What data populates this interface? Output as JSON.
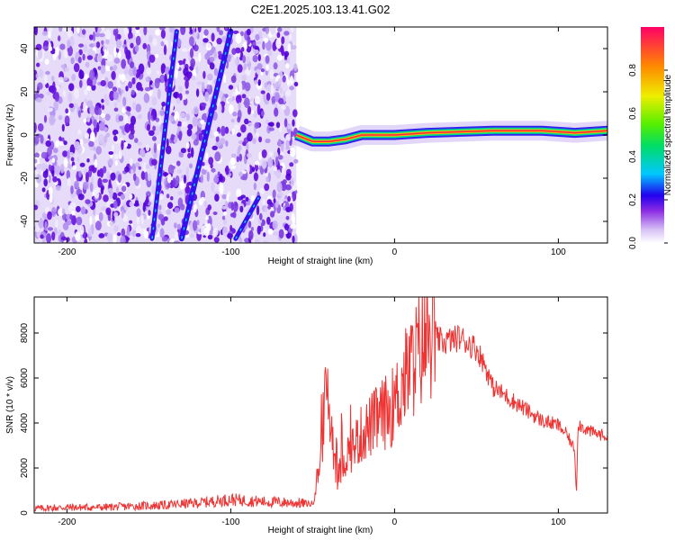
{
  "title": "C2E1.2025.103.13.41.G02",
  "chart_data": [
    {
      "type": "heatmap",
      "xlabel": "Height of straight line (km)",
      "ylabel": "Frequency (Hz)",
      "xlim": [
        -220,
        130
      ],
      "ylim": [
        -50,
        50
      ],
      "xticks": [
        -200,
        -100,
        0,
        100
      ],
      "yticks": [
        -40,
        -20,
        0,
        20,
        40
      ],
      "colorbar": {
        "label": "Normalized spectral amplitude",
        "range": [
          0,
          1
        ],
        "ticks": [
          "0.0",
          "0.2",
          "0.4",
          "0.6",
          "0.8"
        ]
      },
      "features": [
        {
          "name": "noise-region",
          "x_range": [
            -220,
            -60
          ],
          "y_range": [
            -50,
            50
          ]
        },
        {
          "name": "streak-1",
          "from": [
            -130,
            -48
          ],
          "to": [
            -100,
            48
          ]
        },
        {
          "name": "streak-2",
          "from": [
            -148,
            -48
          ],
          "to": [
            -133,
            48
          ]
        },
        {
          "name": "streak-3",
          "from": [
            -97,
            -48
          ],
          "to": [
            -83,
            -29
          ]
        },
        {
          "name": "carrier-line",
          "points": [
            [
              -60,
              0
            ],
            [
              -50,
              -3
            ],
            [
              -40,
              -3
            ],
            [
              -30,
              -2
            ],
            [
              -20,
              0
            ],
            [
              0,
              0
            ],
            [
              20,
              1
            ],
            [
              60,
              2
            ],
            [
              90,
              2
            ],
            [
              110,
              1
            ],
            [
              130,
              2
            ]
          ]
        }
      ]
    },
    {
      "type": "line",
      "xlabel": "Height of straight line (km)",
      "ylabel": "SNR (10 * v/v)",
      "xlim": [
        -220,
        130
      ],
      "ylim": [
        0,
        9600
      ],
      "xticks": [
        -200,
        -100,
        0,
        100
      ],
      "yticks": [
        0,
        2000,
        4000,
        6000,
        8000
      ],
      "series": [
        {
          "color": "#ee3333",
          "x": [
            -220,
            -200,
            -180,
            -160,
            -140,
            -120,
            -100,
            -80,
            -60,
            -50,
            -45,
            -43,
            -41,
            -38,
            -35,
            -30,
            -20,
            -10,
            0,
            5,
            10,
            15,
            20,
            30,
            40,
            50,
            55,
            60,
            70,
            80,
            90,
            100,
            105,
            110,
            111,
            112,
            115,
            120,
            130
          ],
          "y": [
            200,
            250,
            250,
            300,
            350,
            450,
            600,
            500,
            450,
            400,
            2500,
            4500,
            5500,
            3500,
            1500,
            2500,
            3500,
            4200,
            4800,
            5800,
            6500,
            7200,
            7800,
            7600,
            7800,
            7300,
            6600,
            5600,
            5100,
            4600,
            4100,
            3900,
            3500,
            2800,
            700,
            4000,
            3800,
            3600,
            3400
          ]
        }
      ]
    }
  ]
}
